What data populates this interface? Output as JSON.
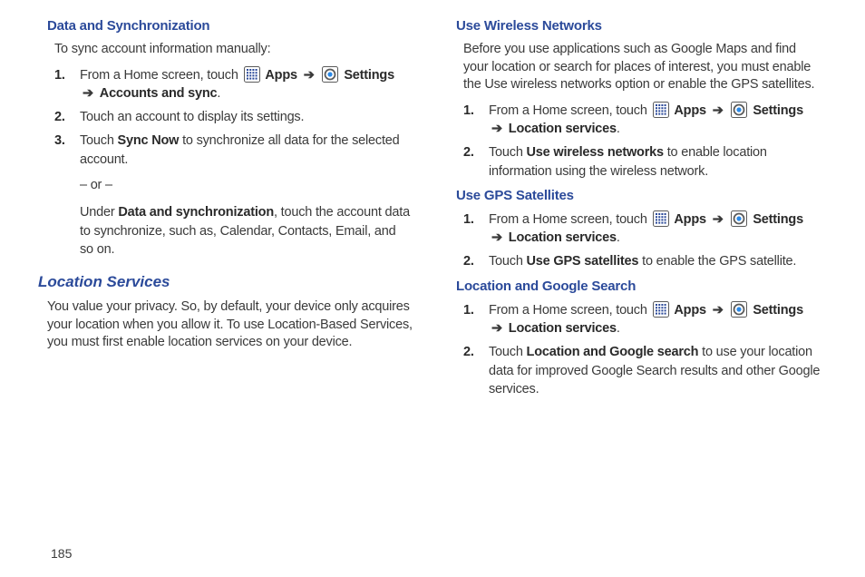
{
  "page_number": "185",
  "icons": {
    "apps_border": "#5b5b5b",
    "apps_fill": "#ffffff",
    "apps_grid": "#2b4a9a",
    "settings_border": "#5b5b5b",
    "settings_core": "#2b8ae8"
  },
  "left": {
    "data_sync": {
      "heading": "Data and Synchronization",
      "intro": "To sync account information manually:",
      "steps": [
        {
          "pre": "From a Home screen, touch ",
          "apps_label": "Apps",
          "settings_label": "Settings",
          "post": "Accounts and sync",
          "suffix": "."
        },
        {
          "text": "Touch an account to display its settings."
        },
        {
          "pre": "Touch ",
          "bold": "Sync Now",
          "post": " to synchronize all data for the selected account."
        }
      ],
      "or": "– or –",
      "under_pre": "Under ",
      "under_bold": "Data and synchronization",
      "under_post": ", touch the account data to synchronize, such as, Calendar, Contacts, Email, and so on."
    },
    "location_services": {
      "heading": "Location Services",
      "body": "You value your privacy. So, by default, your device only acquires your location when you allow it. To use Location-Based Services, you must first enable location services on your device."
    }
  },
  "right": {
    "wireless": {
      "heading": "Use Wireless Networks",
      "intro": "Before you use applications such as Google Maps and find your location or search for places of interest, you must enable the Use wireless networks option or enable the GPS satellites.",
      "steps": [
        {
          "pre": "From a Home screen, touch ",
          "apps_label": "Apps",
          "settings_label": "Settings",
          "post": "Location services",
          "suffix": "."
        },
        {
          "pre": "Touch ",
          "bold": "Use wireless networks",
          "post": " to enable location information using the wireless network."
        }
      ]
    },
    "gps": {
      "heading": "Use GPS Satellites",
      "steps": [
        {
          "pre": "From a Home screen, touch ",
          "apps_label": "Apps",
          "settings_label": "Settings",
          "post": "Location services",
          "suffix": "."
        },
        {
          "pre": "Touch ",
          "bold": "Use GPS satellites",
          "post": " to enable the GPS satellite."
        }
      ]
    },
    "google": {
      "heading": "Location and Google Search",
      "steps": [
        {
          "pre": "From a Home screen, touch ",
          "apps_label": "Apps",
          "settings_label": "Settings",
          "post": "Location services",
          "suffix": "."
        },
        {
          "pre": "Touch ",
          "bold": "Location and Google search",
          "post": " to use your location data for improved Google Search results and other Google services."
        }
      ]
    }
  }
}
